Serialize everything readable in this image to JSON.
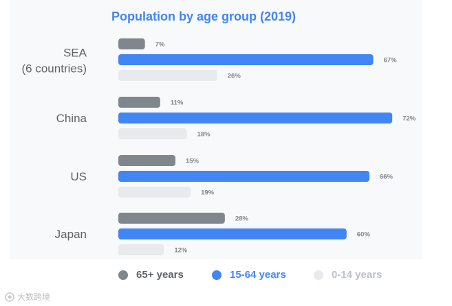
{
  "chart_data": {
    "type": "bar",
    "orientation": "horizontal",
    "title": "Population by age group (2019)",
    "categories": [
      "SEA\n(6 countries)",
      "China",
      "US",
      "Japan"
    ],
    "series": [
      {
        "name": "65+ years",
        "values": [
          7,
          11,
          15,
          28
        ]
      },
      {
        "name": "15-64 years",
        "values": [
          67,
          72,
          66,
          60
        ]
      },
      {
        "name": "0-14 years",
        "values": [
          26,
          18,
          19,
          12
        ]
      }
    ],
    "value_suffix": "%",
    "xlim": [
      0,
      72
    ],
    "grid": false,
    "legend_position": "bottom"
  },
  "colors": {
    "series": [
      "#80868b",
      "#4285f4",
      "#e8eaed"
    ],
    "legend_text": [
      "#5f6368",
      "#4285f4",
      "#bdc1c6"
    ],
    "title": "#4285f4"
  },
  "watermark": {
    "text": "大数跨境"
  }
}
